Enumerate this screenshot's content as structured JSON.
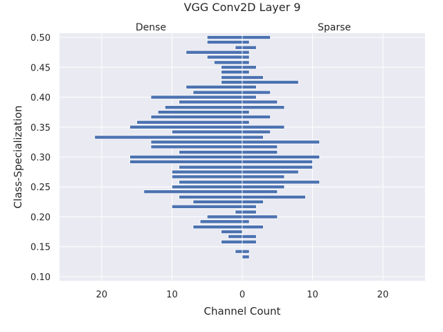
{
  "chart_data": {
    "type": "bar",
    "orientation": "horizontal-back-to-back",
    "title": "VGG Conv2D Layer 9",
    "xlabel": "Channel Count",
    "ylabel": "Class-Specialization",
    "left_label": "Dense",
    "right_label": "Sparse",
    "xlim": [
      -26,
      26
    ],
    "ylim": [
      0.093,
      0.507
    ],
    "xticks": [
      -20,
      -10,
      0,
      10,
      20
    ],
    "xtick_labels": [
      "20",
      "10",
      "0",
      "10",
      "20"
    ],
    "yticks": [
      0.1,
      0.15,
      0.2,
      0.25,
      0.3,
      0.35,
      0.4,
      0.45,
      0.5
    ],
    "ytick_labels": [
      "0.10",
      "0.15",
      "0.20",
      "0.25",
      "0.30",
      "0.35",
      "0.40",
      "0.45",
      "0.50"
    ],
    "bar_height": 0.006,
    "bar_color": "#4c72b0",
    "background": "#eaeaf2",
    "grid": true,
    "series": [
      {
        "name": "Dense",
        "points": [
          {
            "y": 0.5,
            "v": 5
          },
          {
            "y": 0.492,
            "v": 5
          },
          {
            "y": 0.483,
            "v": 1
          },
          {
            "y": 0.475,
            "v": 8
          },
          {
            "y": 0.467,
            "v": 5
          },
          {
            "y": 0.458,
            "v": 4
          },
          {
            "y": 0.45,
            "v": 3
          },
          {
            "y": 0.442,
            "v": 3
          },
          {
            "y": 0.433,
            "v": 3
          },
          {
            "y": 0.425,
            "v": 3
          },
          {
            "y": 0.417,
            "v": 8
          },
          {
            "y": 0.408,
            "v": 7
          },
          {
            "y": 0.4,
            "v": 13
          },
          {
            "y": 0.392,
            "v": 9
          },
          {
            "y": 0.383,
            "v": 11
          },
          {
            "y": 0.375,
            "v": 12
          },
          {
            "y": 0.367,
            "v": 13
          },
          {
            "y": 0.358,
            "v": 15
          },
          {
            "y": 0.35,
            "v": 16
          },
          {
            "y": 0.342,
            "v": 10
          },
          {
            "y": 0.333,
            "v": 21
          },
          {
            "y": 0.325,
            "v": 13
          },
          {
            "y": 0.317,
            "v": 13
          },
          {
            "y": 0.308,
            "v": 9
          },
          {
            "y": 0.3,
            "v": 16
          },
          {
            "y": 0.292,
            "v": 16
          },
          {
            "y": 0.283,
            "v": 9
          },
          {
            "y": 0.275,
            "v": 10
          },
          {
            "y": 0.267,
            "v": 10
          },
          {
            "y": 0.258,
            "v": 9
          },
          {
            "y": 0.25,
            "v": 10
          },
          {
            "y": 0.242,
            "v": 14
          },
          {
            "y": 0.233,
            "v": 9
          },
          {
            "y": 0.225,
            "v": 7
          },
          {
            "y": 0.217,
            "v": 10
          },
          {
            "y": 0.208,
            "v": 1
          },
          {
            "y": 0.2,
            "v": 5
          },
          {
            "y": 0.192,
            "v": 6
          },
          {
            "y": 0.183,
            "v": 7
          },
          {
            "y": 0.175,
            "v": 3
          },
          {
            "y": 0.167,
            "v": 2
          },
          {
            "y": 0.158,
            "v": 3
          },
          {
            "y": 0.142,
            "v": 1
          }
        ]
      },
      {
        "name": "Sparse",
        "points": [
          {
            "y": 0.5,
            "v": 4
          },
          {
            "y": 0.492,
            "v": 1
          },
          {
            "y": 0.483,
            "v": 2
          },
          {
            "y": 0.475,
            "v": 1
          },
          {
            "y": 0.467,
            "v": 1
          },
          {
            "y": 0.458,
            "v": 1
          },
          {
            "y": 0.45,
            "v": 2
          },
          {
            "y": 0.442,
            "v": 1
          },
          {
            "y": 0.433,
            "v": 3
          },
          {
            "y": 0.425,
            "v": 8
          },
          {
            "y": 0.417,
            "v": 2
          },
          {
            "y": 0.408,
            "v": 4
          },
          {
            "y": 0.4,
            "v": 2
          },
          {
            "y": 0.392,
            "v": 5
          },
          {
            "y": 0.383,
            "v": 6
          },
          {
            "y": 0.375,
            "v": 1
          },
          {
            "y": 0.367,
            "v": 4
          },
          {
            "y": 0.358,
            "v": 1
          },
          {
            "y": 0.35,
            "v": 6
          },
          {
            "y": 0.342,
            "v": 4
          },
          {
            "y": 0.333,
            "v": 3
          },
          {
            "y": 0.325,
            "v": 11
          },
          {
            "y": 0.317,
            "v": 5
          },
          {
            "y": 0.308,
            "v": 5
          },
          {
            "y": 0.3,
            "v": 11
          },
          {
            "y": 0.292,
            "v": 10
          },
          {
            "y": 0.283,
            "v": 10
          },
          {
            "y": 0.275,
            "v": 8
          },
          {
            "y": 0.267,
            "v": 6
          },
          {
            "y": 0.258,
            "v": 11
          },
          {
            "y": 0.25,
            "v": 6
          },
          {
            "y": 0.242,
            "v": 5
          },
          {
            "y": 0.233,
            "v": 9
          },
          {
            "y": 0.225,
            "v": 3
          },
          {
            "y": 0.217,
            "v": 2
          },
          {
            "y": 0.208,
            "v": 2
          },
          {
            "y": 0.2,
            "v": 5
          },
          {
            "y": 0.192,
            "v": 1
          },
          {
            "y": 0.183,
            "v": 3
          },
          {
            "y": 0.167,
            "v": 2
          },
          {
            "y": 0.158,
            "v": 2
          },
          {
            "y": 0.142,
            "v": 1
          },
          {
            "y": 0.133,
            "v": 1
          }
        ]
      }
    ]
  }
}
